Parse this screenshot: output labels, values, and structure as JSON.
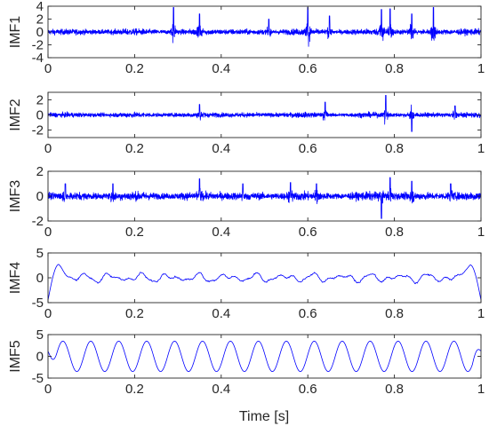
{
  "figure": {
    "xlabel": "Time [s]",
    "line_color": "#0000ff",
    "axis_color": "#262626"
  },
  "chart_data": [
    {
      "type": "line",
      "ylabel": "IMF1",
      "xlim": [
        0,
        1
      ],
      "ylim": [
        -4,
        4
      ],
      "yticks": [
        4,
        2,
        0,
        -2,
        -4
      ],
      "xticks": [
        0,
        0.2,
        0.4,
        0.6,
        0.8,
        1
      ],
      "xtick_labels": [
        "0",
        "0.2",
        "0.4",
        "0.6",
        "0.8",
        "1"
      ],
      "series": [
        {
          "signal": "broadband noise",
          "baseline_amplitude": 0.7,
          "bursts": [
            {
              "t": 0.29,
              "amp": 3.8
            },
            {
              "t": 0.35,
              "amp": 2.8
            },
            {
              "t": 0.51,
              "amp": 2.0
            },
            {
              "t": 0.6,
              "amp": 3.8
            },
            {
              "t": 0.65,
              "amp": 2.5
            },
            {
              "t": 0.77,
              "amp": 3.5
            },
            {
              "t": 0.79,
              "amp": 3.6
            },
            {
              "t": 0.84,
              "amp": 2.8
            },
            {
              "t": 0.89,
              "amp": 3.8
            }
          ]
        }
      ]
    },
    {
      "type": "line",
      "ylabel": "IMF2",
      "xlim": [
        0,
        1
      ],
      "ylim": [
        -3,
        3
      ],
      "yticks": [
        2,
        0,
        -2
      ],
      "xticks": [
        0,
        0.2,
        0.4,
        0.6,
        0.8,
        1
      ],
      "xtick_labels": [
        "0",
        "0.2",
        "0.4",
        "0.6",
        "0.8",
        "1"
      ],
      "series": [
        {
          "signal": "broadband noise",
          "baseline_amplitude": 0.5,
          "bursts": [
            {
              "t": 0.35,
              "amp": 1.4
            },
            {
              "t": 0.64,
              "amp": 1.7
            },
            {
              "t": 0.78,
              "amp": 2.6
            },
            {
              "t": 0.84,
              "amp": -2.2
            },
            {
              "t": 0.94,
              "amp": 1.2
            }
          ]
        }
      ]
    },
    {
      "type": "line",
      "ylabel": "IMF3",
      "xlim": [
        0,
        1
      ],
      "ylim": [
        -2,
        2
      ],
      "yticks": [
        2,
        0,
        -2
      ],
      "xticks": [
        0,
        0.2,
        0.4,
        0.6,
        0.8,
        1
      ],
      "xtick_labels": [
        "0",
        "0.2",
        "0.4",
        "0.6",
        "0.8",
        "1"
      ],
      "series": [
        {
          "signal": "broadband noise",
          "baseline_amplitude": 0.5,
          "bursts": [
            {
              "t": 0.04,
              "amp": 1.0
            },
            {
              "t": 0.15,
              "amp": 1.0
            },
            {
              "t": 0.35,
              "amp": 1.4
            },
            {
              "t": 0.45,
              "amp": 1.0
            },
            {
              "t": 0.56,
              "amp": 1.1
            },
            {
              "t": 0.62,
              "amp": 1.0
            },
            {
              "t": 0.77,
              "amp": -1.8
            },
            {
              "t": 0.79,
              "amp": 1.5
            },
            {
              "t": 0.84,
              "amp": 1.2
            },
            {
              "t": 0.93,
              "amp": 1.0
            }
          ]
        }
      ]
    },
    {
      "type": "line",
      "ylabel": "IMF4",
      "xlim": [
        0,
        1
      ],
      "ylim": [
        -5,
        5
      ],
      "yticks": [
        5,
        0,
        -5
      ],
      "xticks": [
        0,
        0.2,
        0.4,
        0.6,
        0.8,
        1
      ],
      "xtick_labels": [
        "0",
        "0.2",
        "0.4",
        "0.6",
        "0.8",
        "1"
      ],
      "series": [
        {
          "signal": "low-frequency oscillation",
          "start_value": -4.5,
          "end_value": -4.5,
          "peak_start": {
            "t": 0.025,
            "value": 2.7
          },
          "peak_end": {
            "t": 0.975,
            "value": 2.6
          },
          "mid_amplitude": 1.0
        }
      ]
    },
    {
      "type": "line",
      "ylabel": "IMF5",
      "xlim": [
        0,
        1
      ],
      "ylim": [
        -5,
        5
      ],
      "yticks": [
        5,
        0,
        -5
      ],
      "xticks": [
        0,
        0.2,
        0.4,
        0.6,
        0.8,
        1
      ],
      "xtick_labels": [
        "0",
        "0.2",
        "0.4",
        "0.6",
        "0.8",
        "1"
      ],
      "series": [
        {
          "signal": "sinusoid",
          "amplitude": 3.5,
          "frequency_hz": 15.5,
          "edge_level": 1.2
        }
      ]
    }
  ]
}
